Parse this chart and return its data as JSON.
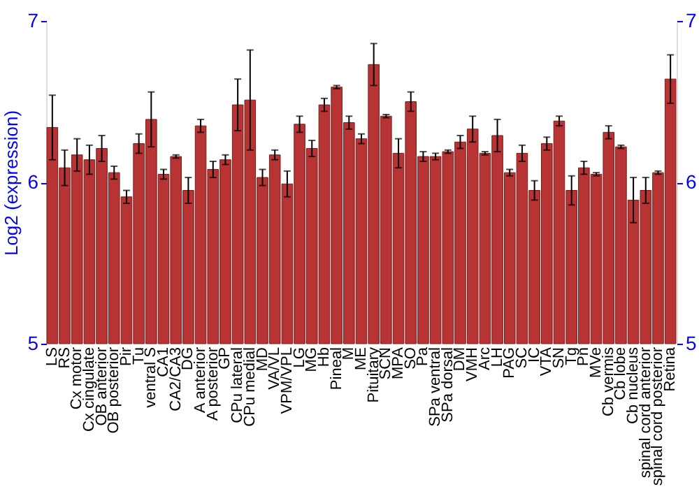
{
  "chart_data": {
    "type": "bar",
    "ylabel": "Log2 (expression)",
    "categories": [
      "LS",
      "RS",
      "Cx motor",
      "Cx cingulate",
      "OB anterior",
      "OB posterior",
      "Pir",
      "Tu",
      "ventral S",
      "CA1",
      "CA2/CA3",
      "DG",
      "A anterior",
      "A posterior",
      "GP",
      "CPu lateral",
      "CPu medial",
      "MD",
      "VA/VL",
      "VPM/VPL",
      "LG",
      "MG",
      "Hb",
      "Pineal",
      "M",
      "ME",
      "Pituitary",
      "SCN",
      "MPA",
      "SO",
      "Pa",
      "SPa ventral",
      "SPa dorsal",
      "DM",
      "VMH",
      "Arc",
      "LH",
      "PAG",
      "SC",
      "IC",
      "VTA",
      "SN",
      "Tg",
      "Pn",
      "MVe",
      "Cb vermis",
      "Cb lobe",
      "Cb nucleus",
      "spinal cord anterior",
      "spinal cord posterior",
      "Retina"
    ],
    "values": [
      6.34,
      6.09,
      6.17,
      6.14,
      6.21,
      6.06,
      5.91,
      6.24,
      6.39,
      6.05,
      6.16,
      5.95,
      6.35,
      6.08,
      6.14,
      6.48,
      6.51,
      6.03,
      6.17,
      5.99,
      6.36,
      6.21,
      6.48,
      6.59,
      6.37,
      6.27,
      6.73,
      6.41,
      6.18,
      6.5,
      6.16,
      6.16,
      6.19,
      6.25,
      6.33,
      6.18,
      6.29,
      6.06,
      6.18,
      5.95,
      6.24,
      6.38,
      5.95,
      6.09,
      6.05,
      6.31,
      6.22,
      5.89,
      5.95,
      6.06,
      6.64
    ],
    "errors": [
      0.2,
      0.11,
      0.1,
      0.09,
      0.08,
      0.04,
      0.04,
      0.06,
      0.17,
      0.03,
      0.01,
      0.08,
      0.04,
      0.05,
      0.03,
      0.16,
      0.31,
      0.05,
      0.03,
      0.08,
      0.05,
      0.05,
      0.04,
      0.01,
      0.04,
      0.03,
      0.13,
      0.01,
      0.09,
      0.06,
      0.03,
      0.02,
      0.01,
      0.04,
      0.08,
      0.01,
      0.1,
      0.02,
      0.05,
      0.06,
      0.04,
      0.03,
      0.09,
      0.04,
      0.01,
      0.04,
      0.01,
      0.14,
      0.08,
      0.01,
      0.15
    ],
    "color": "#b83434",
    "ylim": [
      5,
      7
    ],
    "yticks": [
      5,
      6,
      7
    ],
    "y2lim": [
      5,
      7
    ],
    "y2ticks": [
      5,
      6,
      7
    ],
    "grid": "y"
  }
}
